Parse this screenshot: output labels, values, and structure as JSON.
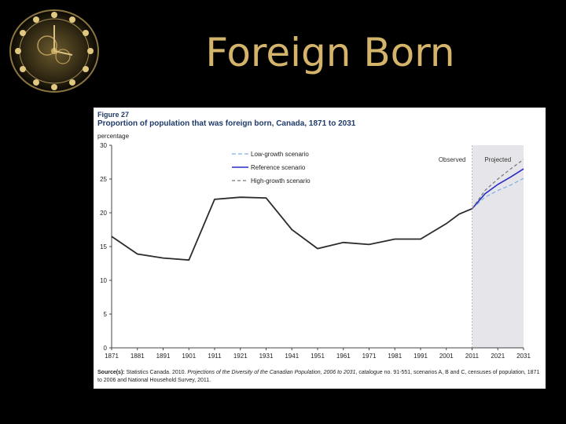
{
  "slide": {
    "title": "Foreign Born"
  },
  "figure": {
    "label": "Figure 27",
    "title": "Proportion of population that was foreign born, Canada, 1871 to 2031",
    "source_label": "Source(s):",
    "source_text_1": "Statistics Canada. 2010.",
    "source_title": "Projections of the Diversity of the Canadian Population, 2006 to 2031",
    "source_text_2": ", catalogue no. 91-551, scenarios A, B and C, censuses of population, 1871 to 2006 and National Household Survey, 2011."
  },
  "colors": {
    "observed": "#2b2b2b",
    "reference": "#2a2ac4",
    "low": "#7fb0e0",
    "high": "#777777",
    "projected_bg": "#e6e6ea",
    "title_text": "#1f3a68",
    "slide_title": "#d4b46a"
  },
  "chart_data": {
    "type": "line",
    "title": "Proportion of population that was foreign born, Canada, 1871 to 2031",
    "ylabel": "percentage",
    "xlabel": "",
    "xlim": [
      1871,
      2031
    ],
    "ylim": [
      0,
      30
    ],
    "xticks": [
      1871,
      1881,
      1891,
      1901,
      1911,
      1921,
      1931,
      1941,
      1951,
      1961,
      1971,
      1981,
      1991,
      2001,
      2011,
      2021,
      2031
    ],
    "yticks": [
      0,
      5,
      10,
      15,
      20,
      25,
      30
    ],
    "regions": [
      {
        "label": "Observed",
        "from": 1871,
        "to": 2011
      },
      {
        "label": "Projected",
        "from": 2011,
        "to": 2031
      }
    ],
    "legend_position": "top-left",
    "series": [
      {
        "key": "observed",
        "x": [
          1871,
          1881,
          1891,
          1901,
          1911,
          1921,
          1931,
          1941,
          1951,
          1961,
          1971,
          1981,
          1991,
          2001,
          2006,
          2011
        ],
        "y": [
          16.5,
          13.9,
          13.3,
          13.0,
          22.0,
          22.3,
          22.2,
          17.5,
          14.7,
          15.6,
          15.3,
          16.1,
          16.1,
          18.4,
          19.8,
          20.6
        ]
      },
      {
        "key": "low",
        "name": "Low-growth scenario",
        "x": [
          2011,
          2016,
          2021,
          2026,
          2031
        ],
        "y": [
          20.6,
          22.3,
          23.3,
          24.1,
          25.1
        ]
      },
      {
        "key": "reference",
        "name": "Reference scenario",
        "x": [
          2011,
          2016,
          2021,
          2026,
          2031
        ],
        "y": [
          20.6,
          22.8,
          24.2,
          25.3,
          26.5
        ]
      },
      {
        "key": "high",
        "name": "High-growth scenario",
        "x": [
          2011,
          2016,
          2021,
          2026,
          2031
        ],
        "y": [
          20.6,
          23.3,
          25.0,
          26.5,
          27.9
        ]
      }
    ]
  }
}
